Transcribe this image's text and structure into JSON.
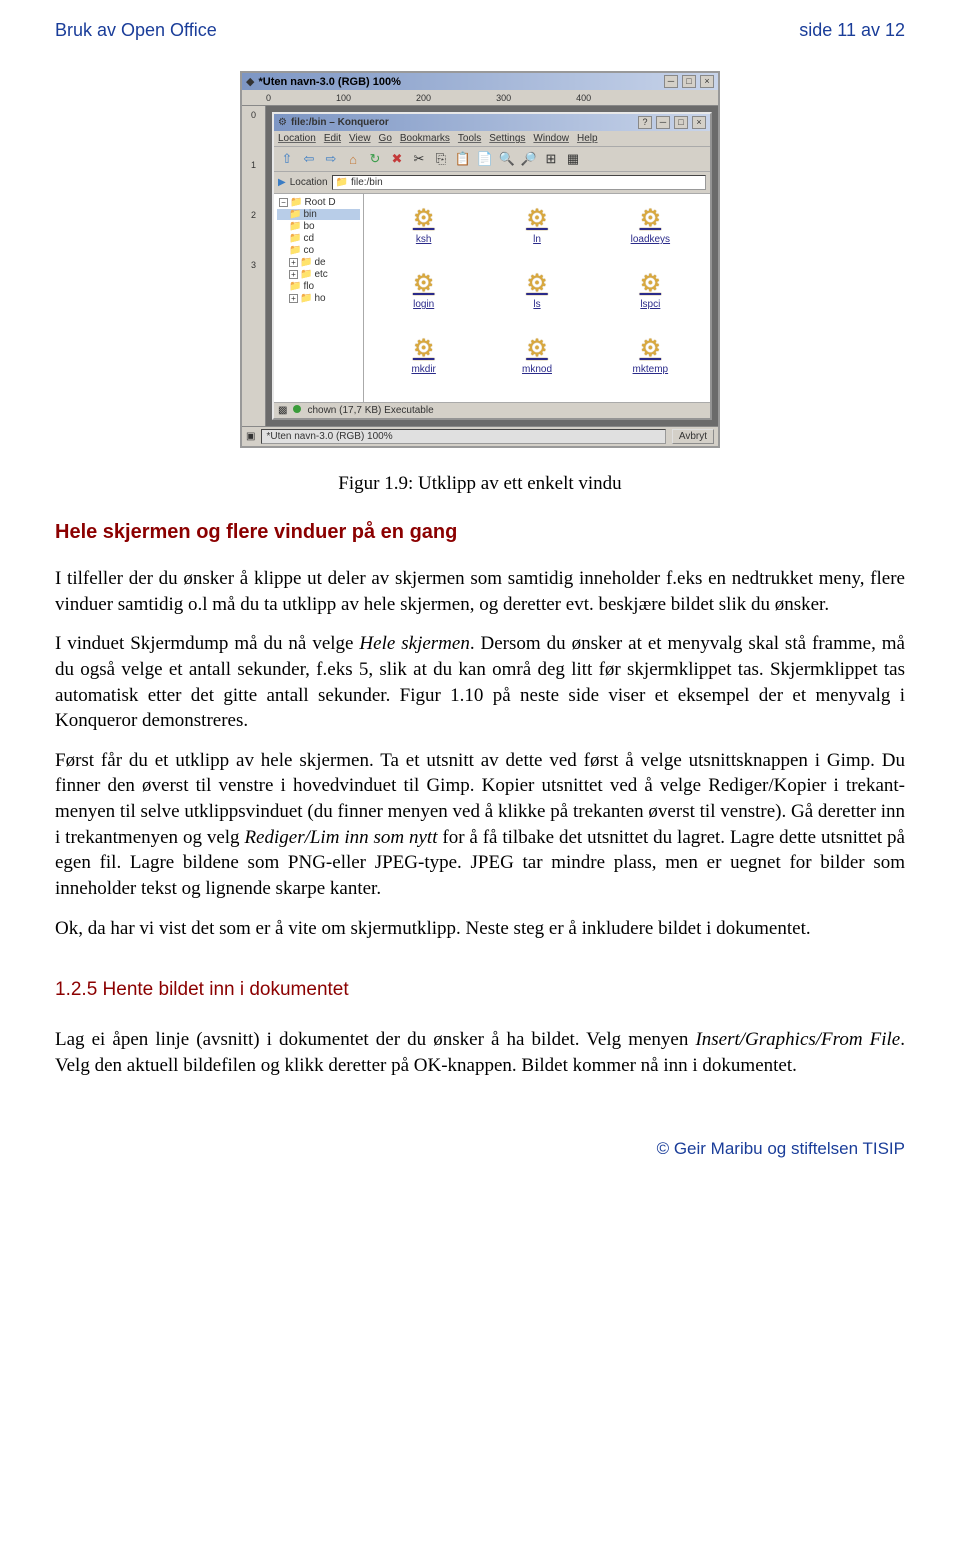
{
  "header": {
    "left": "Bruk av Open Office",
    "right": "side 11 av 12"
  },
  "screenshot": {
    "outer_title": "*Uten navn-3.0 (RGB) 100%",
    "ruler_h": [
      "0",
      "100",
      "200",
      "300",
      "400"
    ],
    "ruler_v": [
      "0",
      "1",
      "2",
      "3"
    ],
    "inner_title": "file:/bin – Konqueror",
    "menus": [
      "Location",
      "Edit",
      "View",
      "Go",
      "Bookmarks",
      "Tools",
      "Settings",
      "Window",
      "Help"
    ],
    "toolbar_icons": [
      "⇧",
      "⇦",
      "⇨",
      "⌂",
      "↻",
      "✖",
      "✂",
      "⎘",
      "📋",
      "📄",
      "🔍",
      "🔎",
      "⊞",
      "▦"
    ],
    "location_label": "Location",
    "location_value": "file:/bin",
    "tree": [
      {
        "label": "Root D",
        "sign": "−",
        "indent": 0,
        "selected": false
      },
      {
        "label": "bin",
        "sign": "",
        "indent": 1,
        "selected": true
      },
      {
        "label": "bo",
        "sign": "",
        "indent": 1,
        "selected": false
      },
      {
        "label": "cd",
        "sign": "",
        "indent": 1,
        "selected": false
      },
      {
        "label": "co",
        "sign": "",
        "indent": 1,
        "selected": false
      },
      {
        "label": "de",
        "sign": "+",
        "indent": 1,
        "selected": false
      },
      {
        "label": "etc",
        "sign": "+",
        "indent": 1,
        "selected": false
      },
      {
        "label": "flo",
        "sign": "",
        "indent": 1,
        "selected": false
      },
      {
        "label": "ho",
        "sign": "+",
        "indent": 1,
        "selected": false
      }
    ],
    "files": [
      "ksh",
      "ln",
      "loadkeys",
      "login",
      "ls",
      "lspci",
      "mkdir",
      "mknod",
      "mktemp"
    ],
    "status_text": "chown (17,7 KB) Executable",
    "gimp_status": "*Uten navn-3.0 (RGB) 100%",
    "avbryt": "Avbryt"
  },
  "caption": "Figur 1.9: Utklipp av ett enkelt vindu",
  "heading1": "Hele skjermen og flere vinduer på en gang",
  "para1_a": "I tilfeller der du ønsker å klippe ut deler av skjermen som samtidig inneholder f.eks en nedtrukket meny, flere vinduer samtidig o.l må du ta utklipp av hele skjermen, og deretter evt. beskjære bildet slik du ønsker.",
  "para2_a": "I vinduet Skjermdump må du nå velge ",
  "para2_b": "Hele skjermen",
  "para2_c": ". Dersom du ønsker at et menyvalg skal stå framme, må du også velge et antall sekunder, f.eks 5, slik at du kan områ deg litt før skjermklippet tas. Skjermklippet tas automatisk etter det gitte antall sekunder. Figur 1.10 på neste side viser et eksempel der et menyvalg i Konqueror demonstreres.",
  "para3_a": "Først får du et utklipp av hele skjermen. Ta et utsnitt av dette ved først å velge utsnittsknappen i Gimp. Du finner den øverst til venstre i hovedvinduet til Gimp. Kopier utsnittet ved å velge Rediger/Kopier i trekant-menyen til selve utklippsvinduet (du finner menyen ved å klikke på trekanten øverst til venstre). Gå deretter inn i trekantmenyen og velg ",
  "para3_b": "Rediger/Lim inn som nytt",
  "para3_c": " for å få tilbake det utsnittet du lagret. Lagre dette utsnittet på egen fil. Lagre bildene som PNG-eller JPEG-type. JPEG tar mindre plass, men er uegnet for bilder som inneholder tekst og lignende skarpe kanter.",
  "para4": "Ok, da har vi vist det som er å vite om skjermutklipp. Neste steg er å inkludere bildet i dokumentet.",
  "heading2": "1.2.5 Hente bildet inn i dokumentet",
  "para5_a": "Lag ei åpen linje (avsnitt) i dokumentet der du ønsker å ha bildet. Velg menyen ",
  "para5_b": "Insert/Graphics/From File",
  "para5_c": ". Velg den aktuell bildefilen og klikk deretter på OK-knappen. Bildet kommer nå inn i dokumentet.",
  "footer": "© Geir Maribu og stiftelsen TISIP"
}
